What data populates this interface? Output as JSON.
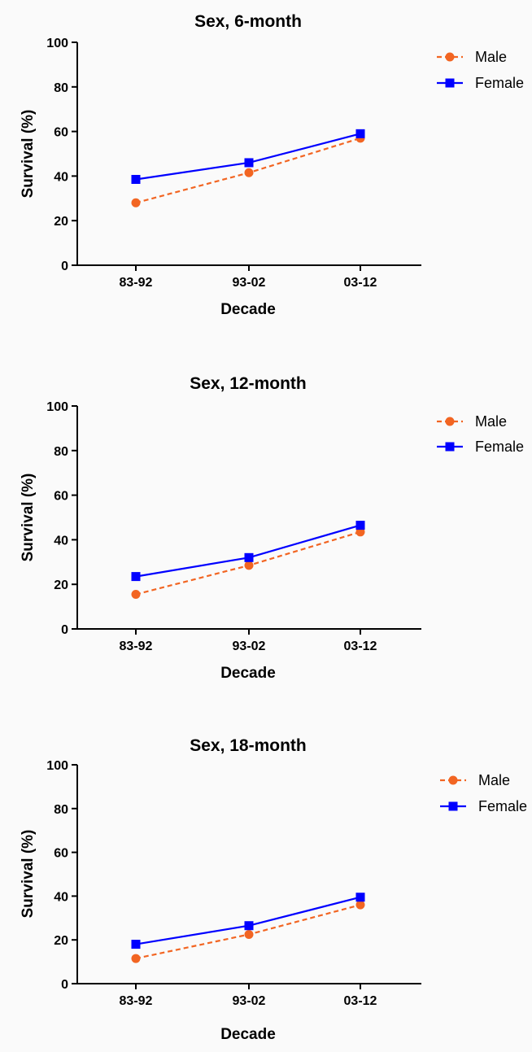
{
  "chart_data": [
    {
      "type": "line",
      "title": "Sex, 6-month",
      "xlabel": "Decade",
      "ylabel": "Survival (%)",
      "categories": [
        "83-92",
        "93-02",
        "03-12"
      ],
      "ylim": [
        0,
        100
      ],
      "yticks": [
        0,
        20,
        40,
        60,
        80,
        100
      ],
      "grid": false,
      "legend_position": "top-right",
      "series": [
        {
          "name": "Male",
          "values": [
            28,
            41.5,
            57
          ],
          "color": "#f26522",
          "marker": "circle",
          "dash": true
        },
        {
          "name": "Female",
          "values": [
            38.5,
            46,
            59
          ],
          "color": "#0000ff",
          "marker": "square",
          "dash": false
        }
      ]
    },
    {
      "type": "line",
      "title": "Sex, 12-month",
      "xlabel": "Decade",
      "ylabel": "Survival (%)",
      "categories": [
        "83-92",
        "93-02",
        "03-12"
      ],
      "ylim": [
        0,
        100
      ],
      "yticks": [
        0,
        20,
        40,
        60,
        80,
        100
      ],
      "grid": false,
      "legend_position": "top-right",
      "series": [
        {
          "name": "Male",
          "values": [
            15.5,
            28.5,
            43.5
          ],
          "color": "#f26522",
          "marker": "circle",
          "dash": true
        },
        {
          "name": "Female",
          "values": [
            23.5,
            32,
            46.5
          ],
          "color": "#0000ff",
          "marker": "square",
          "dash": false
        }
      ]
    },
    {
      "type": "line",
      "title": "Sex, 18-month",
      "xlabel": "Decade",
      "ylabel": "Survival (%)",
      "categories": [
        "83-92",
        "93-02",
        "03-12"
      ],
      "ylim": [
        0,
        100
      ],
      "yticks": [
        0,
        20,
        40,
        60,
        80,
        100
      ],
      "grid": false,
      "legend_position": "top-right",
      "series": [
        {
          "name": "Male",
          "values": [
            11.5,
            22.5,
            36
          ],
          "color": "#f26522",
          "marker": "circle",
          "dash": true
        },
        {
          "name": "Female",
          "values": [
            18,
            26.5,
            39.5
          ],
          "color": "#0000ff",
          "marker": "square",
          "dash": false
        }
      ]
    }
  ]
}
